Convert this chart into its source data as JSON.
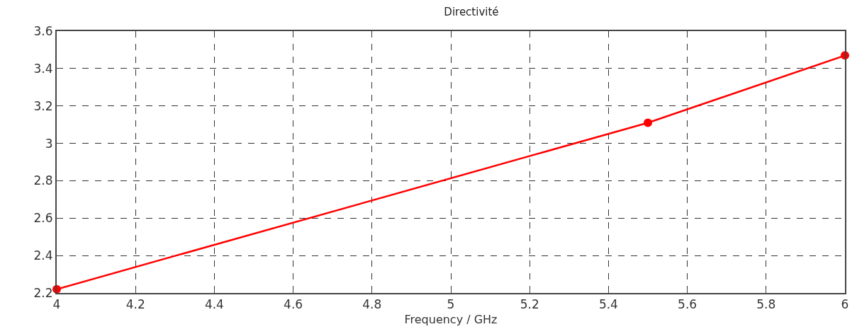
{
  "chart_data": {
    "type": "line",
    "title": "Directivité",
    "xlabel": "Frequency / GHz",
    "x": [
      4,
      5.5,
      6
    ],
    "series": [
      {
        "color": "#ff0000",
        "values": [
          2.22,
          3.11,
          3.47
        ]
      }
    ],
    "xlim": [
      4,
      6
    ],
    "xticks": [
      4,
      4.2,
      4.4,
      4.6,
      4.8,
      5,
      5.2,
      5.4,
      5.6,
      5.8,
      6
    ],
    "ylim": [
      2.2,
      3.6
    ],
    "yticks": [
      2.2,
      2.4,
      2.6,
      2.8,
      3,
      3.2,
      3.4,
      3.6
    ],
    "grid": true,
    "marker": "circle",
    "line_style": "solid"
  }
}
